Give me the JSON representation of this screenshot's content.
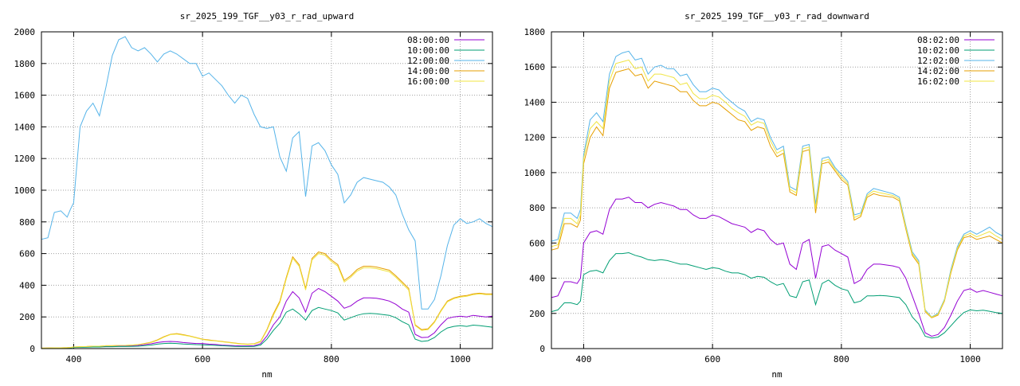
{
  "chart_data": [
    {
      "type": "line",
      "title": "sr_2025_199_TGF__y03_r_rad_upward",
      "xlabel": "nm",
      "ylabel": "",
      "xlim": [
        350,
        1050
      ],
      "ylim": [
        0,
        2000
      ],
      "xticks": [
        "400",
        "600",
        "800",
        "1000"
      ],
      "yticks": [
        "0",
        "200",
        "400",
        "600",
        "800",
        "1000",
        "1200",
        "1400",
        "1600",
        "1800",
        "2000"
      ],
      "grid": true,
      "legend_position": "top-right",
      "x": [
        350,
        360,
        370,
        380,
        390,
        395,
        400,
        410,
        420,
        430,
        440,
        450,
        460,
        470,
        480,
        490,
        500,
        510,
        520,
        530,
        540,
        550,
        560,
        570,
        580,
        590,
        600,
        610,
        620,
        630,
        640,
        650,
        660,
        670,
        680,
        690,
        700,
        710,
        720,
        730,
        740,
        750,
        760,
        770,
        780,
        790,
        800,
        810,
        820,
        830,
        840,
        850,
        860,
        870,
        880,
        890,
        900,
        910,
        920,
        930,
        940,
        950,
        960,
        970,
        980,
        990,
        1000,
        1010,
        1020,
        1030,
        1040,
        1050
      ],
      "series": [
        {
          "name": "08:00:00",
          "color": "#9400d3",
          "values": [
            2,
            3,
            4,
            4,
            5,
            6,
            9,
            10,
            11,
            12,
            13,
            15,
            15,
            16,
            16,
            18,
            20,
            25,
            30,
            38,
            43,
            45,
            43,
            38,
            35,
            32,
            32,
            28,
            26,
            22,
            20,
            18,
            17,
            17,
            18,
            30,
            80,
            150,
            200,
            300,
            360,
            320,
            230,
            350,
            380,
            360,
            330,
            300,
            255,
            270,
            300,
            320,
            320,
            318,
            310,
            300,
            280,
            250,
            230,
            90,
            70,
            72,
            100,
            150,
            190,
            200,
            205,
            200,
            210,
            205,
            200,
            205
          ]
        },
        {
          "name": "10:00:00",
          "color": "#009e73",
          "values": [
            1,
            2,
            3,
            3,
            4,
            5,
            7,
            8,
            9,
            10,
            10,
            12,
            12,
            13,
            13,
            14,
            15,
            18,
            22,
            28,
            32,
            34,
            32,
            29,
            27,
            25,
            24,
            22,
            20,
            18,
            16,
            14,
            13,
            13,
            14,
            22,
            60,
            115,
            160,
            230,
            250,
            220,
            180,
            240,
            260,
            250,
            240,
            225,
            180,
            195,
            210,
            220,
            222,
            220,
            215,
            210,
            195,
            170,
            150,
            60,
            45,
            50,
            70,
            105,
            130,
            140,
            145,
            140,
            148,
            145,
            140,
            135
          ]
        },
        {
          "name": "12:00:00",
          "color": "#56b4e9",
          "values": [
            690,
            700,
            860,
            870,
            830,
            880,
            920,
            1400,
            1500,
            1550,
            1470,
            1650,
            1850,
            1950,
            1970,
            1900,
            1880,
            1900,
            1860,
            1810,
            1860,
            1880,
            1860,
            1830,
            1800,
            1800,
            1720,
            1740,
            1700,
            1660,
            1600,
            1550,
            1600,
            1580,
            1480,
            1400,
            1390,
            1400,
            1210,
            1120,
            1330,
            1370,
            960,
            1280,
            1300,
            1250,
            1160,
            1100,
            920,
            970,
            1050,
            1080,
            1070,
            1060,
            1050,
            1020,
            970,
            850,
            750,
            680,
            250,
            250,
            310,
            460,
            650,
            780,
            820,
            790,
            800,
            820,
            790,
            770
          ]
        },
        {
          "name": "14:00:00",
          "color": "#e69f00",
          "values": [
            3,
            4,
            5,
            5,
            6,
            7,
            10,
            12,
            13,
            15,
            15,
            18,
            18,
            20,
            20,
            22,
            25,
            32,
            40,
            55,
            75,
            90,
            95,
            88,
            80,
            70,
            60,
            55,
            50,
            45,
            40,
            35,
            30,
            28,
            30,
            45,
            120,
            220,
            300,
            450,
            580,
            530,
            380,
            570,
            610,
            600,
            560,
            530,
            430,
            460,
            500,
            520,
            520,
            515,
            505,
            495,
            460,
            420,
            380,
            150,
            120,
            125,
            170,
            240,
            300,
            320,
            330,
            335,
            345,
            350,
            345,
            345
          ]
        },
        {
          "name": "16:00:00",
          "color": "#f0e442",
          "values": [
            3,
            4,
            5,
            5,
            6,
            7,
            10,
            12,
            13,
            15,
            15,
            18,
            18,
            20,
            20,
            22,
            25,
            30,
            38,
            52,
            72,
            88,
            92,
            85,
            78,
            68,
            58,
            52,
            48,
            43,
            38,
            33,
            28,
            26,
            28,
            42,
            115,
            210,
            290,
            440,
            570,
            520,
            370,
            560,
            600,
            590,
            550,
            520,
            420,
            450,
            490,
            510,
            510,
            505,
            495,
            485,
            450,
            410,
            370,
            145,
            115,
            120,
            165,
            235,
            295,
            315,
            325,
            330,
            340,
            345,
            340,
            340
          ]
        }
      ]
    },
    {
      "type": "line",
      "title": "sr_2025_199_TGF__y03_r_rad_downward",
      "xlabel": "nm",
      "ylabel": "",
      "xlim": [
        350,
        1050
      ],
      "ylim": [
        0,
        1800
      ],
      "xticks": [
        "400",
        "600",
        "800",
        "1000"
      ],
      "yticks": [
        "0",
        "200",
        "400",
        "600",
        "800",
        "1000",
        "1200",
        "1400",
        "1600",
        "1800"
      ],
      "grid": true,
      "legend_position": "top-right",
      "x": [
        350,
        360,
        370,
        380,
        390,
        395,
        400,
        410,
        420,
        430,
        440,
        450,
        460,
        470,
        480,
        490,
        500,
        510,
        520,
        530,
        540,
        550,
        560,
        570,
        580,
        590,
        600,
        610,
        620,
        630,
        640,
        650,
        660,
        670,
        680,
        690,
        700,
        710,
        720,
        730,
        740,
        750,
        760,
        770,
        780,
        790,
        800,
        810,
        820,
        830,
        840,
        850,
        860,
        870,
        880,
        890,
        900,
        910,
        920,
        930,
        940,
        950,
        960,
        970,
        980,
        990,
        1000,
        1010,
        1020,
        1030,
        1040,
        1050
      ],
      "series": [
        {
          "name": "08:02:00",
          "color": "#9400d3",
          "values": [
            290,
            300,
            380,
            380,
            370,
            400,
            600,
            660,
            670,
            650,
            790,
            850,
            850,
            860,
            830,
            830,
            800,
            820,
            830,
            820,
            810,
            790,
            790,
            760,
            740,
            740,
            760,
            750,
            730,
            710,
            700,
            690,
            660,
            680,
            670,
            620,
            590,
            600,
            480,
            450,
            600,
            620,
            400,
            580,
            590,
            560,
            540,
            520,
            370,
            390,
            450,
            480,
            480,
            475,
            470,
            460,
            400,
            300,
            200,
            90,
            70,
            80,
            120,
            190,
            270,
            330,
            340,
            320,
            330,
            320,
            310,
            300
          ]
        },
        {
          "name": "10:02:00",
          "color": "#009e73",
          "values": [
            210,
            220,
            260,
            260,
            250,
            270,
            420,
            440,
            445,
            430,
            500,
            540,
            540,
            545,
            530,
            520,
            505,
            500,
            505,
            500,
            490,
            480,
            480,
            470,
            460,
            450,
            460,
            455,
            440,
            430,
            430,
            420,
            400,
            410,
            405,
            380,
            360,
            370,
            300,
            290,
            380,
            390,
            250,
            370,
            390,
            360,
            340,
            330,
            260,
            270,
            300,
            300,
            302,
            300,
            295,
            290,
            250,
            180,
            140,
            70,
            60,
            65,
            90,
            130,
            170,
            205,
            220,
            215,
            218,
            212,
            205,
            200
          ]
        },
        {
          "name": "12:02:00",
          "color": "#56b4e9",
          "values": [
            610,
            620,
            770,
            770,
            740,
            790,
            1100,
            1300,
            1340,
            1290,
            1560,
            1660,
            1680,
            1690,
            1640,
            1650,
            1560,
            1600,
            1610,
            1590,
            1590,
            1550,
            1560,
            1500,
            1460,
            1460,
            1480,
            1470,
            1430,
            1400,
            1370,
            1350,
            1290,
            1310,
            1300,
            1200,
            1130,
            1150,
            920,
            900,
            1150,
            1160,
            820,
            1080,
            1090,
            1030,
            990,
            950,
            760,
            770,
            880,
            910,
            900,
            890,
            880,
            860,
            700,
            550,
            500,
            220,
            180,
            200,
            280,
            450,
            580,
            650,
            670,
            650,
            670,
            690,
            660,
            640
          ]
        },
        {
          "name": "14:02:00",
          "color": "#e69f00",
          "values": [
            560,
            570,
            710,
            710,
            690,
            730,
            1050,
            1200,
            1260,
            1210,
            1480,
            1570,
            1580,
            1590,
            1550,
            1560,
            1480,
            1520,
            1510,
            1500,
            1490,
            1460,
            1460,
            1410,
            1380,
            1380,
            1400,
            1390,
            1360,
            1330,
            1300,
            1290,
            1240,
            1260,
            1250,
            1150,
            1090,
            1110,
            890,
            870,
            1120,
            1130,
            770,
            1050,
            1060,
            1010,
            960,
            930,
            730,
            750,
            860,
            880,
            870,
            865,
            860,
            840,
            680,
            530,
            480,
            210,
            175,
            190,
            270,
            430,
            560,
            630,
            640,
            620,
            630,
            640,
            620,
            600
          ]
        },
        {
          "name": "16:02:00",
          "color": "#f0e442",
          "values": [
            580,
            590,
            740,
            740,
            710,
            760,
            1080,
            1250,
            1290,
            1250,
            1520,
            1620,
            1630,
            1640,
            1590,
            1600,
            1520,
            1560,
            1560,
            1550,
            1540,
            1500,
            1510,
            1450,
            1420,
            1420,
            1440,
            1430,
            1400,
            1365,
            1340,
            1320,
            1270,
            1290,
            1280,
            1180,
            1110,
            1130,
            905,
            885,
            1135,
            1145,
            795,
            1065,
            1075,
            1020,
            975,
            940,
            745,
            760,
            870,
            895,
            885,
            878,
            870,
            850,
            690,
            540,
            490,
            215,
            178,
            195,
            275,
            440,
            570,
            640,
            655,
            635,
            650,
            665,
            640,
            620
          ]
        }
      ]
    }
  ]
}
